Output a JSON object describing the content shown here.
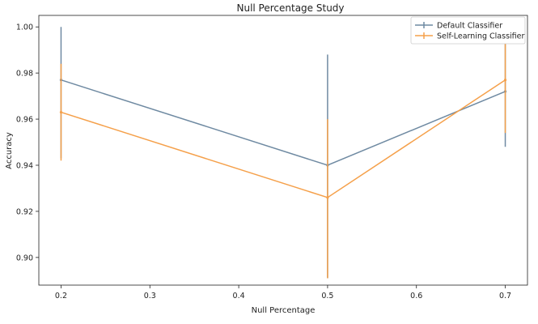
{
  "chart_data": {
    "type": "line",
    "title": "Null Percentage Study",
    "xlabel": "Null Percentage",
    "ylabel": "Accuracy",
    "x": [
      0.2,
      0.5,
      0.7
    ],
    "xlim": [
      0.175,
      0.725
    ],
    "ylim": [
      0.888,
      1.005
    ],
    "xticks": [
      "0.2",
      "0.3",
      "0.4",
      "0.5",
      "0.6",
      "0.7"
    ],
    "yticks": [
      "0.90",
      "0.92",
      "0.94",
      "0.96",
      "0.98",
      "1.00"
    ],
    "grid": false,
    "legend_position": "upper right",
    "series": [
      {
        "name": "Default Classifier",
        "color": "#6f8aa2",
        "values": [
          0.977,
          0.94,
          0.972
        ],
        "err_low": [
          0.943,
          0.891,
          0.948
        ],
        "err_high": [
          1.0,
          0.988,
          0.997
        ]
      },
      {
        "name": "Self-Learning Classifier",
        "color": "#f5a04a",
        "values": [
          0.963,
          0.926,
          0.977
        ],
        "err_low": [
          0.942,
          0.891,
          0.954
        ],
        "err_high": [
          0.984,
          0.96,
          0.999
        ]
      }
    ]
  }
}
